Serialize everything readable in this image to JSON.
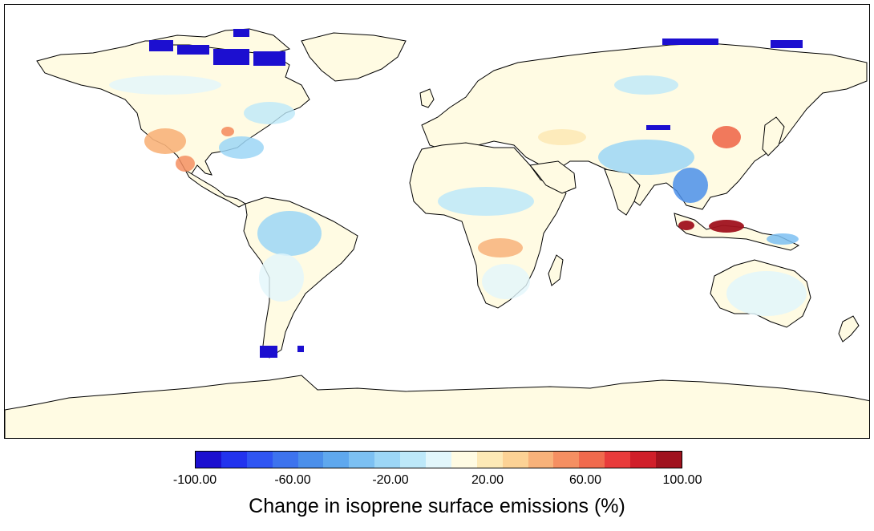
{
  "legend": {
    "title": "Change in isoprene surface emissions (%)",
    "tick_labels": [
      "-100.00",
      "-60.00",
      "-20.00",
      "20.00",
      "60.00",
      "100.00"
    ],
    "range": [
      -100,
      100
    ],
    "colors": [
      "#1c0fd0",
      "#2233ee",
      "#2f55f2",
      "#3d73ee",
      "#4b8fea",
      "#5fa8ee",
      "#7cc0f2",
      "#9cd6f6",
      "#bde8f9",
      "#e2f6fb",
      "#fffbe3",
      "#fde9b6",
      "#fcd295",
      "#f8b27a",
      "#f58f62",
      "#f06a4d",
      "#e83b3b",
      "#d01f2a",
      "#a0121e"
    ]
  },
  "map": {
    "projection": "equirectangular",
    "background": "#ffffff",
    "land_base_color": "#fffbe3",
    "coastline_color": "#000000"
  }
}
